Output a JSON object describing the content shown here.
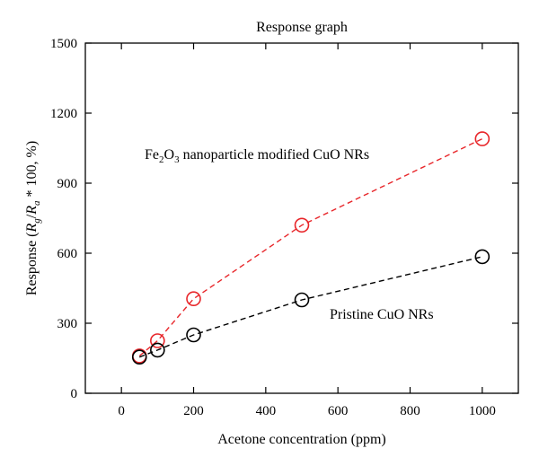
{
  "chart_data": {
    "type": "scatter",
    "title": "Response graph",
    "xlabel": "Acetone concentration (ppm)",
    "ylabel": "Response (Rg/Ra * 100, %)",
    "xlim": [
      -100,
      1100
    ],
    "ylim": [
      0,
      1500
    ],
    "xticks": [
      0,
      200,
      400,
      600,
      800,
      1000
    ],
    "yticks": [
      0,
      300,
      600,
      900,
      1200,
      1500
    ],
    "grid": false,
    "series": [
      {
        "name": "Fe2O3 nanoparticle modified CuO NRs",
        "color": "#e8262a",
        "line_style": "dashed",
        "marker": "open-circle",
        "x": [
          50,
          100,
          200,
          500,
          1000
        ],
        "y": [
          160,
          225,
          405,
          720,
          1090
        ]
      },
      {
        "name": "Pristine CuO NRs",
        "color": "#000000",
        "line_style": "dashed",
        "marker": "open-circle",
        "x": [
          50,
          100,
          200,
          500,
          1000
        ],
        "y": [
          155,
          185,
          250,
          400,
          585
        ]
      }
    ]
  }
}
